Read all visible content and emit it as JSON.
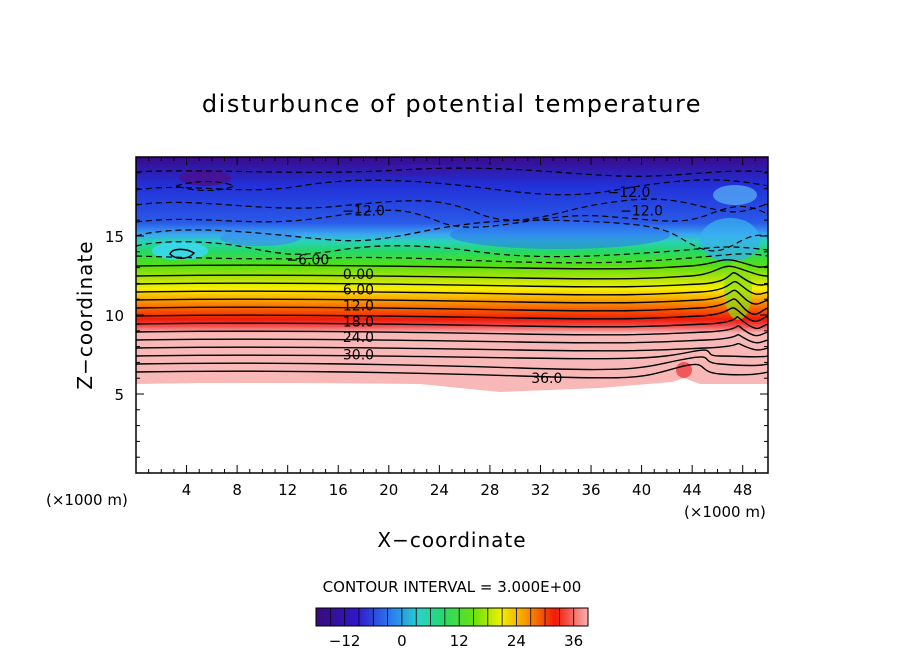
{
  "chart_data": {
    "type": "contour",
    "title": "disturbunce of potential temperature",
    "xlabel": "X−coordinate",
    "ylabel": "Z−coordinate",
    "x_unit": "(×1000 m)",
    "y_unit": "(×1000 m)",
    "xlim": [
      0,
      50
    ],
    "ylim": [
      0,
      20
    ],
    "x_ticks": [
      4,
      8,
      12,
      16,
      20,
      24,
      28,
      32,
      36,
      40,
      44,
      48
    ],
    "y_ticks": [
      5,
      10,
      15
    ],
    "contour_interval_text": "CONTOUR INTERVAL = 3.000E+00",
    "contour_interval": 3.0,
    "contour_labels": [
      {
        "text": "−12.0",
        "x": 39.0,
        "z": 17.8
      },
      {
        "text": "−12.0",
        "x": 40.0,
        "z": 16.6
      },
      {
        "text": "−12.0",
        "x": 18.0,
        "z": 16.6
      },
      {
        "text": "−6.00",
        "x": 13.6,
        "z": 13.5
      },
      {
        "text": "0.00",
        "x": 17.6,
        "z": 12.6
      },
      {
        "text": "6.00",
        "x": 17.6,
        "z": 11.6
      },
      {
        "text": "12.0",
        "x": 17.6,
        "z": 10.6
      },
      {
        "text": "18.0",
        "x": 17.6,
        "z": 9.6
      },
      {
        "text": "24.0",
        "x": 17.6,
        "z": 8.6
      },
      {
        "text": "30.0",
        "x": 17.6,
        "z": 7.5
      },
      {
        "text": "36.0",
        "x": 32.5,
        "z": 6.0
      }
    ],
    "colorbar": {
      "min": -18,
      "max": 39,
      "ticks": [
        -12,
        0,
        12,
        24,
        36
      ],
      "tick_labels": [
        "−12",
        "0",
        "12",
        "24",
        "36"
      ]
    },
    "colors": {
      "cold": "#3a0a78",
      "zero": "#2ad2a0",
      "warm": "#e81010",
      "hot": "#f8b0b0"
    }
  }
}
